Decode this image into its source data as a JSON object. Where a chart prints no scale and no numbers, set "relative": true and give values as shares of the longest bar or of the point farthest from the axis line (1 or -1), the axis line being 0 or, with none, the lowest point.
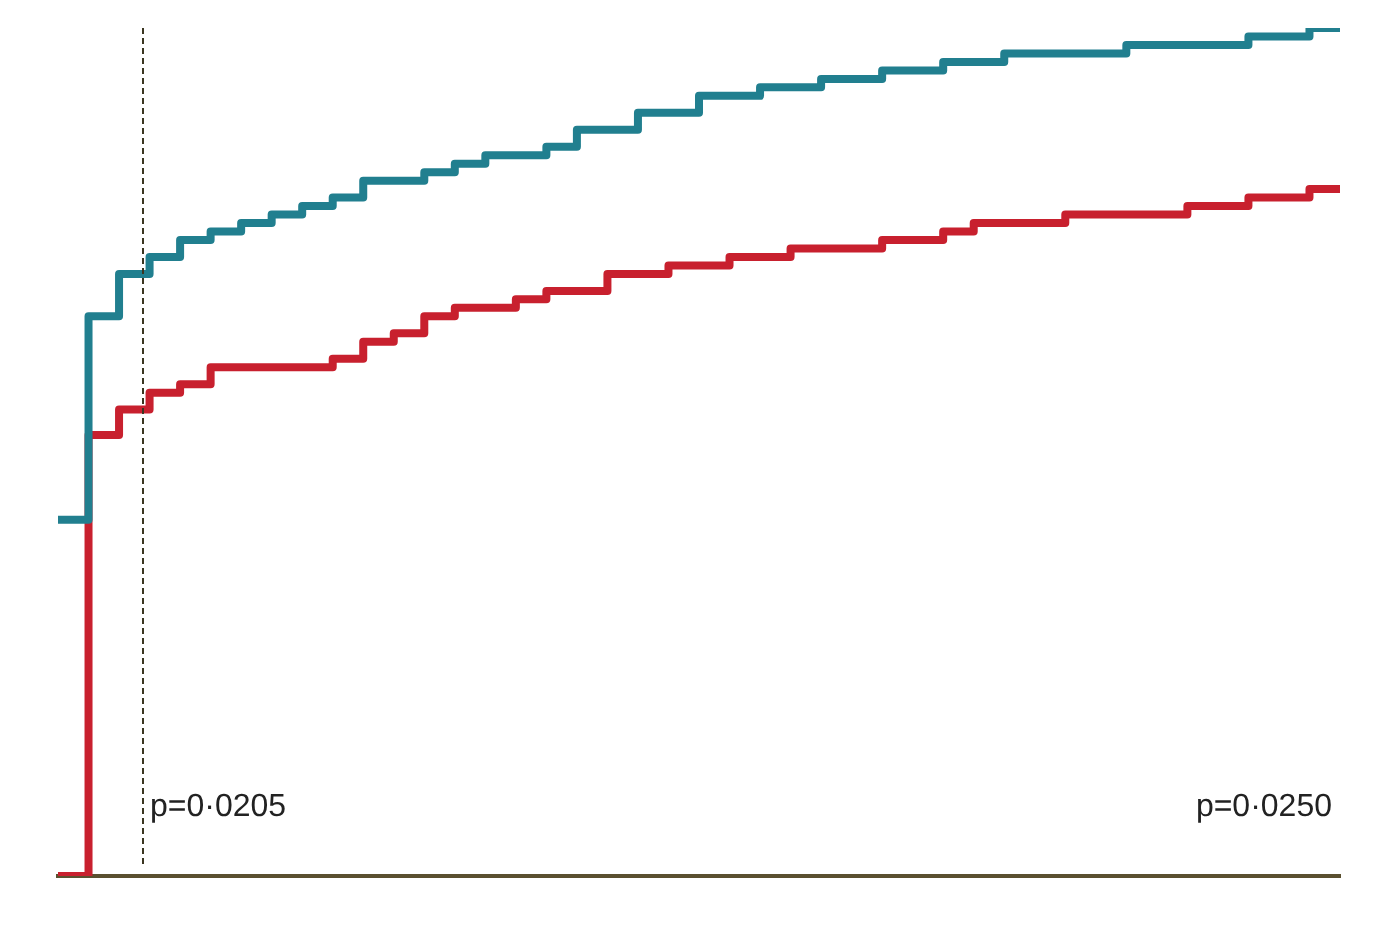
{
  "chart_data": {
    "type": "step",
    "relative": true,
    "categories": [
      null,
      null,
      null,
      null,
      null,
      null,
      null,
      null,
      null,
      null,
      null,
      null,
      null,
      null,
      null,
      null,
      null,
      null,
      null,
      null,
      null,
      null,
      null,
      null,
      null,
      null,
      null,
      null,
      null,
      null,
      null,
      null,
      null,
      null,
      null,
      null,
      null,
      null,
      null,
      null,
      null,
      null,
      null
    ],
    "series": [
      {
        "color": "#217f8f",
        "values": [
          0.42,
          0.66,
          0.71,
          0.73,
          0.75,
          0.76,
          0.77,
          0.78,
          0.79,
          0.8,
          0.82,
          0.82,
          0.83,
          0.84,
          0.85,
          0.85,
          0.86,
          0.88,
          0.88,
          0.9,
          0.9,
          0.92,
          0.92,
          0.93,
          0.93,
          0.94,
          0.94,
          0.95,
          0.95,
          0.96,
          0.96,
          0.97,
          0.97,
          0.97,
          0.97,
          0.98,
          0.98,
          0.98,
          0.98,
          0.99,
          0.99,
          1,
          1
        ]
      },
      {
        "color": "#c8202e",
        "values": [
          0,
          0.52,
          0.55,
          0.57,
          0.58,
          0.6,
          0.6,
          0.6,
          0.6,
          0.61,
          0.63,
          0.64,
          0.66,
          0.67,
          0.67,
          0.68,
          0.69,
          0.69,
          0.71,
          0.71,
          0.72,
          0.72,
          0.73,
          0.73,
          0.74,
          0.74,
          0.74,
          0.75,
          0.75,
          0.76,
          0.77,
          0.77,
          0.77,
          0.78,
          0.78,
          0.78,
          0.78,
          0.79,
          0.79,
          0.8,
          0.8,
          0.81,
          0.81
        ]
      }
    ],
    "annotations": [
      "p=0·0205",
      "p=0·0250"
    ],
    "grid": false,
    "legend": false
  }
}
